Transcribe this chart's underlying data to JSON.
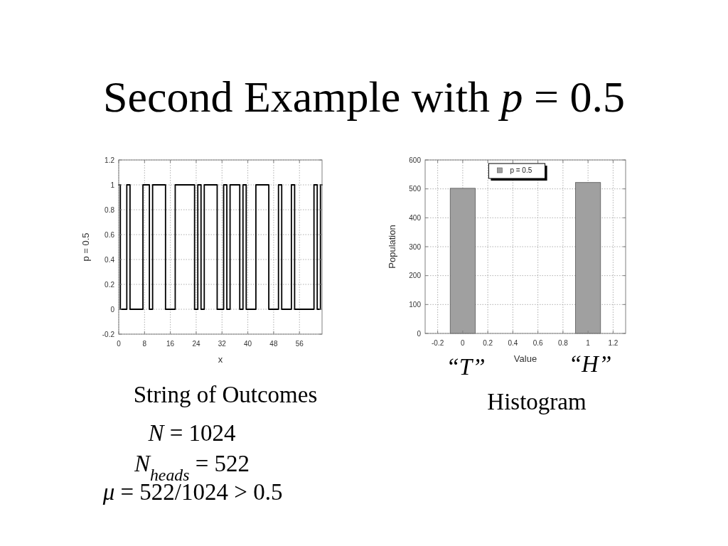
{
  "chart_data": [
    {
      "type": "step",
      "title": "Second Example with p = 0.5",
      "xlabel": "x",
      "ylabel": "p = 0.5",
      "x": [
        0,
        1,
        2,
        3,
        4,
        5,
        6,
        7,
        8,
        9,
        10,
        11,
        12,
        13,
        14,
        15,
        16,
        17,
        18,
        19,
        20,
        21,
        22,
        23,
        24,
        25,
        26,
        27,
        28,
        29,
        30,
        31,
        32,
        33,
        34,
        35,
        36,
        37,
        38,
        39,
        40,
        41,
        42,
        43,
        44,
        45,
        46,
        47,
        48,
        49,
        50,
        51,
        52,
        53,
        54,
        55,
        56,
        57,
        58,
        59,
        60,
        61,
        62,
        63
      ],
      "values": [
        1,
        0,
        0,
        1,
        0,
        0,
        0,
        0,
        1,
        1,
        0,
        1,
        1,
        1,
        1,
        0,
        0,
        0,
        1,
        1,
        1,
        1,
        1,
        1,
        0,
        1,
        0,
        1,
        1,
        1,
        1,
        0,
        0,
        1,
        0,
        1,
        1,
        1,
        0,
        1,
        0,
        0,
        0,
        1,
        1,
        1,
        1,
        0,
        0,
        0,
        1,
        0,
        0,
        0,
        1,
        0,
        0,
        0,
        0,
        0,
        0,
        1,
        0,
        1
      ],
      "color": "#000000",
      "xlim": [
        0,
        63
      ],
      "ylim": [
        -0.2,
        1.2
      ],
      "xticks": [
        0,
        8,
        16,
        24,
        32,
        40,
        48,
        56
      ],
      "yticks": [
        -0.2,
        0,
        0.2,
        0.4,
        0.6,
        0.8,
        1,
        1.2
      ],
      "grid": true,
      "annotations": [
        "String of Outcomes",
        "N = 1024",
        "N$_{heads}$ = 522",
        "μ = 522/1024 > 0.5"
      ]
    },
    {
      "type": "histogram",
      "xlabel": "Value",
      "ylabel": "Population",
      "bins": [
        -0.1,
        0.1,
        0.9,
        1.1
      ],
      "series": [
        {
          "name": "p = 0.5",
          "color": "#a0a0a0",
          "values": [
            502,
            null,
            522
          ]
        }
      ],
      "xlim": [
        -0.3,
        1.3
      ],
      "ylim": [
        0,
        600
      ],
      "xticks": [
        -0.2,
        0,
        0.2,
        0.4,
        0.6,
        0.8,
        1,
        1.2
      ],
      "yticks": [
        0,
        100,
        200,
        300,
        400,
        500,
        600
      ],
      "grid": true,
      "legend": "top",
      "annotations": [
        "“T”",
        "“H”",
        "Histogram"
      ]
    }
  ]
}
